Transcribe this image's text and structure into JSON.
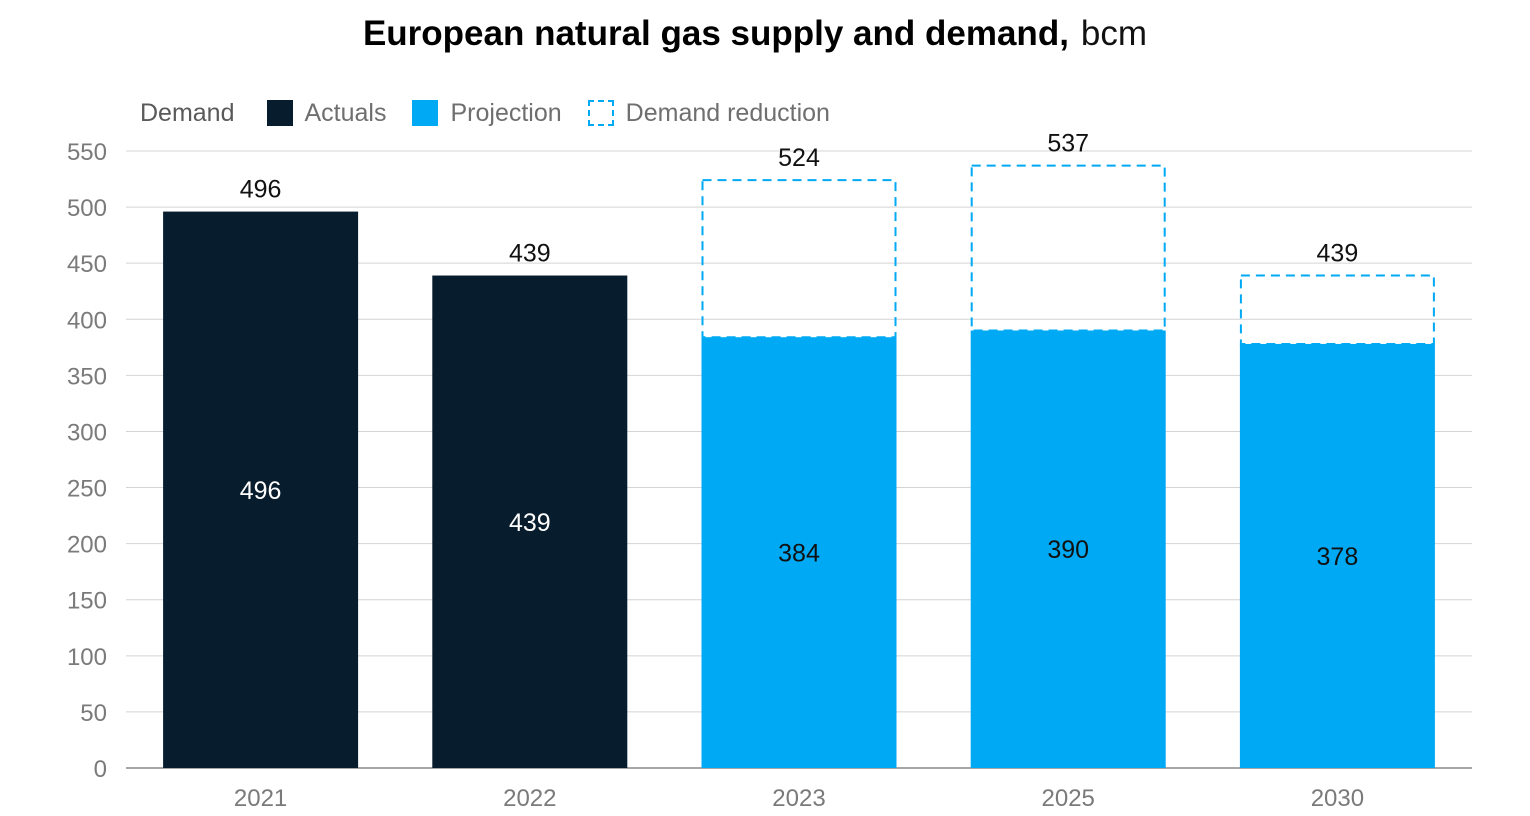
{
  "chart_data": {
    "type": "bar",
    "title": "European natural gas supply and demand,",
    "unit": "bcm",
    "legend": {
      "label": "Demand",
      "items": [
        {
          "key": "actuals",
          "name": "Actuals",
          "color": "#071c2c",
          "style": "solid"
        },
        {
          "key": "projection",
          "name": "Projection",
          "color": "#00a9f4",
          "style": "solid"
        },
        {
          "key": "reduction",
          "name": "Demand reduction",
          "color": "#00a9f4",
          "style": "dashed"
        }
      ]
    },
    "categories": [
      "2021",
      "2022",
      "2023",
      "2025",
      "2030"
    ],
    "bars": [
      {
        "category": "2021",
        "type": "actuals",
        "value": 496,
        "total": 496
      },
      {
        "category": "2022",
        "type": "actuals",
        "value": 439,
        "total": 439
      },
      {
        "category": "2023",
        "type": "projection",
        "value": 384,
        "total": 524
      },
      {
        "category": "2025",
        "type": "projection",
        "value": 390,
        "total": 537
      },
      {
        "category": "2030",
        "type": "projection",
        "value": 378,
        "total": 439
      }
    ],
    "ylim": [
      0,
      550
    ],
    "yticks": [
      0,
      50,
      100,
      150,
      200,
      250,
      300,
      350,
      400,
      450,
      500,
      550
    ],
    "grid": true,
    "legend_position": "top-left"
  }
}
